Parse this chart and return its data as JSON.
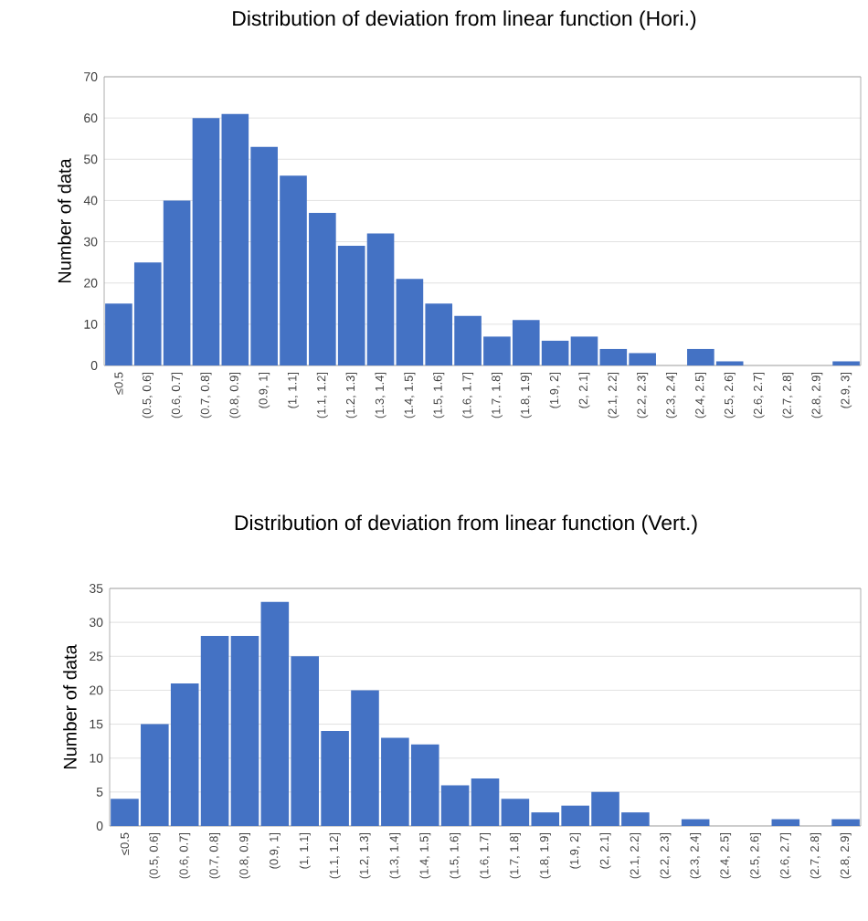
{
  "chart_data": [
    {
      "type": "bar",
      "title": "Distribution of deviation from linear function (Hori.)",
      "ylabel": "Number of data",
      "categories": [
        "≤0.5",
        "(0.5, 0.6]",
        "(0.6, 0.7]",
        "(0.7, 0.8]",
        "(0.8, 0.9]",
        "(0.9, 1]",
        "(1, 1.1]",
        "(1.1, 1.2]",
        "(1.2, 1.3]",
        "(1.3, 1.4]",
        "(1.4, 1.5]",
        "(1.5, 1.6]",
        "(1.6, 1.7]",
        "(1.7, 1.8]",
        "(1.8, 1.9]",
        "(1.9, 2]",
        "(2, 2.1]",
        "(2.1, 2.2]",
        "(2.2, 2.3]",
        "(2.3, 2.4]",
        "(2.4, 2.5]",
        "(2.5, 2.6]",
        "(2.6, 2.7]",
        "(2.7, 2.8]",
        "(2.8, 2.9]",
        "(2.9, 3]"
      ],
      "values": [
        15,
        25,
        40,
        60,
        61,
        53,
        46,
        37,
        29,
        32,
        21,
        15,
        12,
        7,
        11,
        6,
        7,
        4,
        3,
        0,
        4,
        1,
        0,
        0,
        0,
        1
      ],
      "color": "#4472c4",
      "ylim": [
        0,
        70
      ],
      "yticks": [
        0,
        10,
        20,
        30,
        40,
        50,
        60,
        70
      ],
      "grid": "y"
    },
    {
      "type": "bar",
      "title": "Distribution of deviation from linear function (Vert.)",
      "ylabel": "Number of data",
      "categories": [
        "≤0.5",
        "(0.5, 0.6]",
        "(0.6, 0.7]",
        "(0.7, 0.8]",
        "(0.8, 0.9]",
        "(0.9, 1]",
        "(1, 1.1]",
        "(1.1, 1.2]",
        "(1.2, 1.3]",
        "(1.3, 1.4]",
        "(1.4, 1.5]",
        "(1.5, 1.6]",
        "(1.6, 1.7]",
        "(1.7, 1.8]",
        "(1.8, 1.9]",
        "(1.9, 2]",
        "(2, 2.1]",
        "(2.1, 2.2]",
        "(2.2, 2.3]",
        "(2.3, 2.4]",
        "(2.4, 2.5]",
        "(2.5, 2.6]",
        "(2.6, 2.7]",
        "(2.7, 2.8]",
        "(2.8, 2.9]"
      ],
      "values": [
        4,
        15,
        21,
        28,
        28,
        33,
        25,
        14,
        20,
        13,
        12,
        6,
        7,
        4,
        2,
        3,
        5,
        2,
        0,
        1,
        0,
        0,
        1,
        0,
        1
      ],
      "color": "#4472c4",
      "ylim": [
        0,
        35
      ],
      "yticks": [
        0,
        5,
        10,
        15,
        20,
        25,
        30,
        35
      ],
      "grid": "y"
    }
  ]
}
